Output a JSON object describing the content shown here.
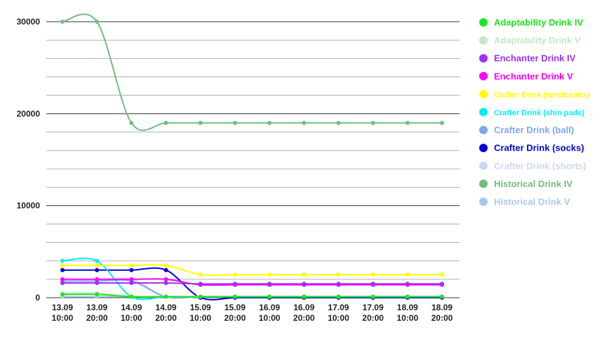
{
  "chart_data": {
    "type": "line",
    "categories": [
      [
        "13.09",
        "10:00"
      ],
      [
        "13.09",
        "20:00"
      ],
      [
        "14.09",
        "10:00"
      ],
      [
        "14.09",
        "20:00"
      ],
      [
        "15.09",
        "10:00"
      ],
      [
        "15.09",
        "20:00"
      ],
      [
        "16.09",
        "10:00"
      ],
      [
        "16.09",
        "20:00"
      ],
      [
        "17.09",
        "10:00"
      ],
      [
        "17.09",
        "20:00"
      ],
      [
        "18.09",
        "10:00"
      ],
      [
        "18.09",
        "20:00"
      ]
    ],
    "yticks": [
      "30000",
      "20000",
      "10000",
      "0"
    ],
    "ylim": [
      0,
      30000
    ],
    "grid": true,
    "legend_position": "right",
    "series": [
      {
        "name": "Adaptability Drink IV",
        "color": "#1ee61e",
        "values": [
          350,
          350,
          100,
          100,
          100,
          100,
          100,
          100,
          100,
          100,
          100,
          100
        ]
      },
      {
        "name": "Adaptability Drink V",
        "color": "#c8e6c8",
        "values": [
          500,
          500,
          150,
          150,
          150,
          150,
          150,
          150,
          150,
          150,
          150,
          150
        ]
      },
      {
        "name": "Enchanter Drink IV",
        "color": "#9b30ff",
        "values": [
          1600,
          1600,
          1600,
          1600,
          1500,
          1500,
          1500,
          1500,
          1500,
          1500,
          1500,
          1500
        ]
      },
      {
        "name": "Enchanter Drink V",
        "color": "#ff00ff",
        "values": [
          2000,
          2000,
          2000,
          2000,
          1400,
          1400,
          1400,
          1400,
          1400,
          1400,
          1400,
          1400
        ]
      },
      {
        "name": "Crafter Drink (wristbands)",
        "color": "#ffff00",
        "small": true,
        "values": [
          3500,
          3500,
          3500,
          3500,
          2500,
          2500,
          2500,
          2500,
          2500,
          2500,
          2500,
          2500
        ]
      },
      {
        "name": "Crafter Drink (shin pads)",
        "color": "#00f0f0",
        "small": true,
        "values": [
          4000,
          4000,
          100,
          100,
          100,
          100,
          100,
          100,
          100,
          100,
          100,
          100
        ]
      },
      {
        "name": "Crafter Drink (ball)",
        "color": "#7fa8e8",
        "values": [
          1800,
          1800,
          1800,
          100,
          100,
          100,
          100,
          100,
          100,
          100,
          100,
          100
        ]
      },
      {
        "name": "Crafter Drink (socks)",
        "color": "#0000dd",
        "values": [
          3000,
          3000,
          3000,
          3000,
          0,
          0,
          0,
          0,
          0,
          0,
          0,
          0
        ]
      },
      {
        "name": "Crafter Drink (shorts)",
        "color": "#ccd9f2",
        "values": [
          2000,
          2000,
          2000,
          100,
          100,
          100,
          100,
          100,
          100,
          100,
          100,
          100
        ]
      },
      {
        "name": "Historical Drink IV",
        "color": "#6fbf7f",
        "values": [
          30000,
          30000,
          19000,
          19000,
          19000,
          19000,
          19000,
          19000,
          19000,
          19000,
          19000,
          19000
        ]
      },
      {
        "name": "Historical Drink V",
        "color": "#a8c8f0",
        "values": [
          100,
          100,
          100,
          100,
          100,
          100,
          100,
          100,
          100,
          100,
          100,
          100
        ]
      }
    ]
  }
}
